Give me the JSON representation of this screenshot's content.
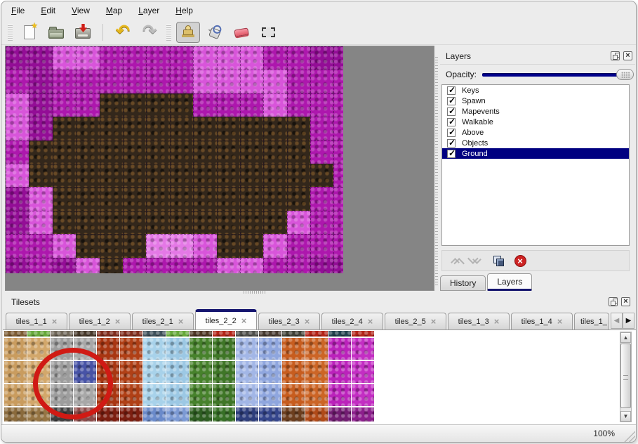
{
  "menu": {
    "items": [
      "File",
      "Edit",
      "View",
      "Map",
      "Layer",
      "Help"
    ]
  },
  "toolbar": {
    "groups": [
      {
        "lead": "grip",
        "buttons": [
          {
            "icon": "new-file-icon"
          },
          {
            "icon": "open-folder-icon"
          },
          {
            "icon": "save-icon"
          }
        ]
      },
      {
        "lead": "sep",
        "buttons": [
          {
            "icon": "undo-icon"
          },
          {
            "icon": "redo-icon"
          }
        ]
      },
      {
        "lead": "grip",
        "buttons": [
          {
            "icon": "stamp-tool-icon",
            "selected": true
          },
          {
            "icon": "fill-tool-icon"
          },
          {
            "icon": "eraser-tool-icon"
          },
          {
            "icon": "rect-select-tool-icon"
          }
        ]
      }
    ]
  },
  "map": {
    "background": "#858585",
    "palette": {
      "M": "#ad17ad",
      "D": "#930d96",
      "P": "#d855da",
      "L": "#e478e6",
      "B": "#33271b"
    },
    "rows": [
      "DDPPMMMMPPPMMDD",
      "MDMMMMMMPPPPMMM",
      "PDMMBBBBMMMPMMM",
      "PDBBBBBBBBBBBMM",
      "MBBBBBBBBBBBBMM",
      "PBBBBBBBBBBBBBM",
      "DPBBBBBBBBBBBMM",
      "DPBBBBBBBBBBPMM",
      "MMPBBBLLPBBPMMM",
      "DMDPBMMMMPPMMDD"
    ]
  },
  "layers_panel": {
    "title": "Layers",
    "opacity_label": "Opacity:",
    "opacity_color": "#00008b",
    "layers": [
      {
        "name": "Keys",
        "checked": true
      },
      {
        "name": "Spawn",
        "checked": true
      },
      {
        "name": "Mapevents",
        "checked": true
      },
      {
        "name": "Walkable",
        "checked": true
      },
      {
        "name": "Above",
        "checked": true
      },
      {
        "name": "Objects",
        "checked": true
      },
      {
        "name": "Ground",
        "checked": true,
        "selected": true
      }
    ],
    "selected_layer": "Ground",
    "actions": [
      {
        "icon": "move-layer-up-icon"
      },
      {
        "icon": "move-layer-down-icon"
      },
      {
        "icon": "duplicate-layer-icon"
      },
      {
        "icon": "delete-layer-icon"
      }
    ],
    "tabs": [
      {
        "label": "History",
        "active": false
      },
      {
        "label": "Layers",
        "active": true
      }
    ]
  },
  "tilesets_panel": {
    "title": "Tilesets",
    "tabs": [
      {
        "label": "tiles_1_1"
      },
      {
        "label": "tiles_1_2"
      },
      {
        "label": "tiles_2_1"
      },
      {
        "label": "tiles_2_2",
        "active": true
      },
      {
        "label": "tiles_2_3"
      },
      {
        "label": "tiles_2_4"
      },
      {
        "label": "tiles_2_5"
      },
      {
        "label": "tiles_1_3"
      },
      {
        "label": "tiles_1_4"
      },
      {
        "label": "tiles_1_",
        "truncated": true
      }
    ],
    "grid": {
      "columns": 16,
      "top_strip": [
        "#7d5c33",
        "#66a83a",
        "#6f6658",
        "#46382a",
        "#7e2c1c",
        "#7e2c1c",
        "#3e505a",
        "#66a83a",
        "#4e3524",
        "#b22418",
        "#4e4e4a",
        "#473a30",
        "#3e4036",
        "#b22418",
        "#20404c",
        "#b22418"
      ],
      "row_base": [
        "#c99c5f",
        "#d2a76b",
        "#9d9d9d",
        "#a8a8a8",
        "#a83612",
        "#b04016",
        "#a8d2ea",
        "#9cc8e4",
        "#47822c",
        "#3f7627",
        "#a2b6e6",
        "#8fa6de",
        "#c75d1f",
        "#cc6526",
        "#bb22bb",
        "#c32ec3"
      ],
      "bottom_row": [
        "#8a6a3c",
        "#967544",
        "#3e3e3e",
        "#8c4a48",
        "#7c1e10",
        "#7c1e10",
        "#6a8aca",
        "#7c9ad4",
        "#2e5e22",
        "#377026",
        "#2e3e7c",
        "#35468c",
        "#6c3e1e",
        "#b04a18",
        "#721c72",
        "#8c1e8c"
      ],
      "selected_tile": {
        "col": 3,
        "row": 1,
        "color": "#4753a6"
      },
      "annotation": {
        "shape": "red-circle",
        "color": "#d01a14"
      }
    }
  },
  "statusbar": {
    "zoom": "100%"
  }
}
